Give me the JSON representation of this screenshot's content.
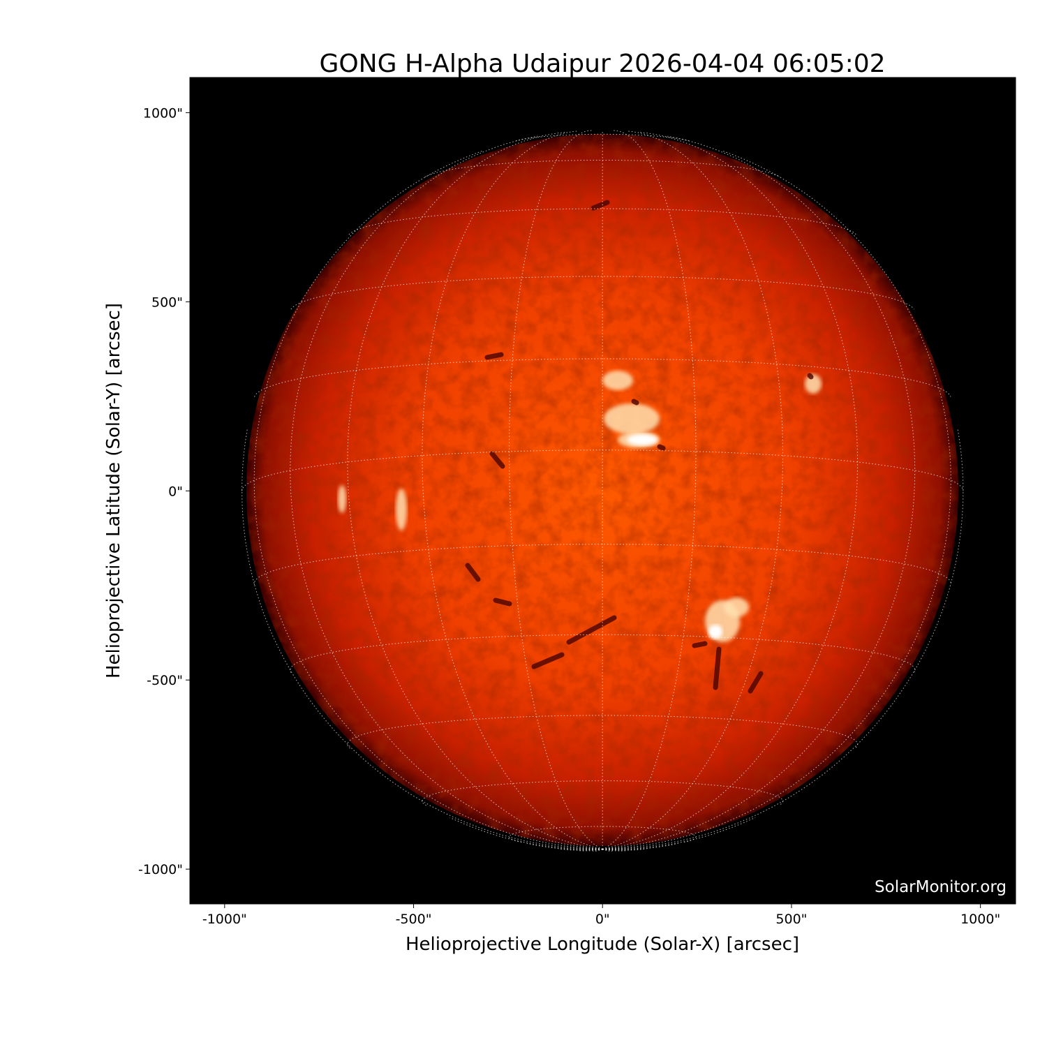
{
  "chart_data": {
    "type": "image",
    "title": "GONG H-Alpha Udaipur 2026-04-04 06:05:02",
    "xlabel": "Helioprojective Longitude (Solar-X) [arcsec]",
    "ylabel": "Helioprojective Latitude (Solar-Y) [arcsec]",
    "xlim": [
      -1092,
      1093
    ],
    "ylim": [
      -1092,
      1093
    ],
    "xticks": [
      -1000,
      -500,
      0,
      500,
      1000
    ],
    "yticks": [
      -1000,
      -500,
      0,
      500,
      1000
    ],
    "xtick_labels": [
      "-1000\"",
      "-500\"",
      "0\"",
      "500\"",
      "1000\""
    ],
    "ytick_labels": [
      "-1000\"",
      "-500\"",
      "0\"",
      "500\"",
      "1000\""
    ],
    "solar_radius_arcsec": 942,
    "grid": true,
    "grid_spacing_deg": 15,
    "colormap": "red-orange H-alpha",
    "watermark": "SolarMonitor.org",
    "colors": {
      "background": "#000000",
      "disk_center": "#ff5a00",
      "disk_limb": "#7a0800",
      "plage": "#fff4e0",
      "filament": "#5a0600"
    }
  }
}
